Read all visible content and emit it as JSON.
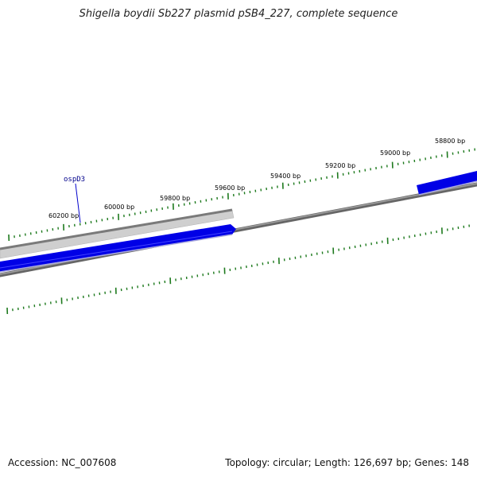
{
  "title": "Shigella boydii Sb227 plasmid pSB4_227, complete sequence",
  "ticks": [
    {
      "label": "60200 bp"
    },
    {
      "label": "60000 bp"
    },
    {
      "label": "59800 bp"
    },
    {
      "label": "59600 bp"
    },
    {
      "label": "59400 bp"
    },
    {
      "label": "59200 bp"
    },
    {
      "label": "59000 bp"
    },
    {
      "label": "58800 bp"
    }
  ],
  "gene_labels": [
    {
      "name": "ospD3"
    }
  ],
  "footer": {
    "accession": "Accession: NC_007608",
    "summary": "Topology: circular; Length: 126,697 bp; Genes: 148"
  },
  "colors": {
    "gene_forward": "#0000e6",
    "feature_gray": "#c8c8c8",
    "backbone": "#808080",
    "tick": "#1e7a1e",
    "label": "#00008b"
  }
}
